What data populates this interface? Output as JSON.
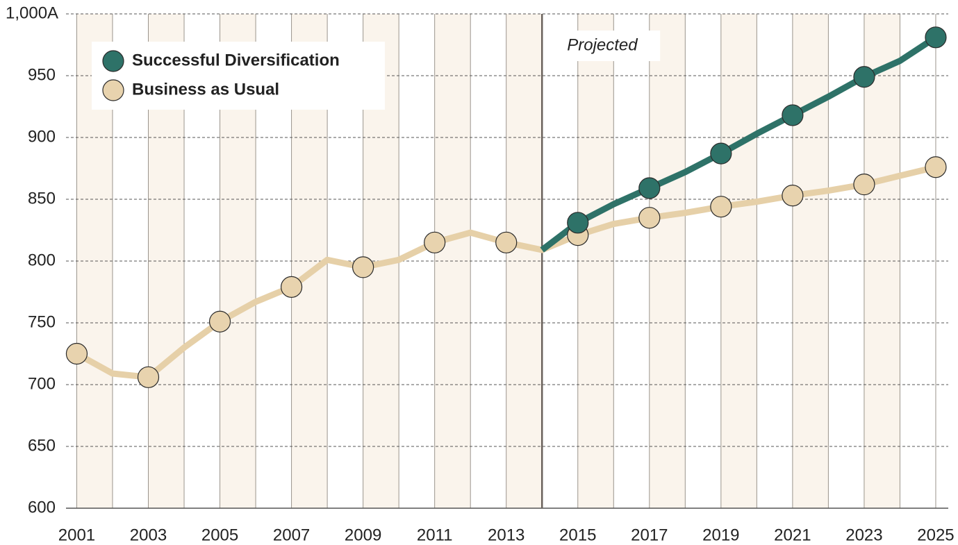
{
  "chart_data": {
    "type": "line",
    "x": [
      2001,
      2002,
      2003,
      2004,
      2005,
      2006,
      2007,
      2008,
      2009,
      2010,
      2011,
      2012,
      2013,
      2014,
      2015,
      2016,
      2017,
      2018,
      2019,
      2020,
      2021,
      2022,
      2023,
      2024,
      2025
    ],
    "series": [
      {
        "name": "Successful Diversification",
        "color": "#2e7268",
        "values": [
          null,
          null,
          null,
          null,
          null,
          null,
          null,
          null,
          null,
          null,
          null,
          null,
          null,
          809,
          831,
          846,
          859,
          872,
          887,
          903,
          918,
          933,
          949,
          962,
          981
        ]
      },
      {
        "name": "Business as Usual",
        "color": "#e6d0a8",
        "values": [
          725,
          709,
          706,
          730,
          751,
          767,
          779,
          801,
          795,
          801,
          815,
          823,
          815,
          809,
          821,
          830,
          835,
          839,
          844,
          848,
          853,
          857,
          862,
          869,
          876
        ]
      }
    ],
    "xlim": [
      2000.7,
      2025.35
    ],
    "xticks": [
      2001,
      2003,
      2005,
      2007,
      2009,
      2011,
      2013,
      2015,
      2017,
      2019,
      2021,
      2023,
      2025
    ],
    "ylim": [
      600,
      1000
    ],
    "yticks": [
      600,
      650,
      700,
      750,
      800,
      850,
      900,
      950,
      {
        "value": 1000,
        "label": "1,000A"
      }
    ],
    "grid": true,
    "legend": "upper left",
    "annotations": [
      {
        "text": "Projected",
        "x": 2014
      }
    ]
  }
}
